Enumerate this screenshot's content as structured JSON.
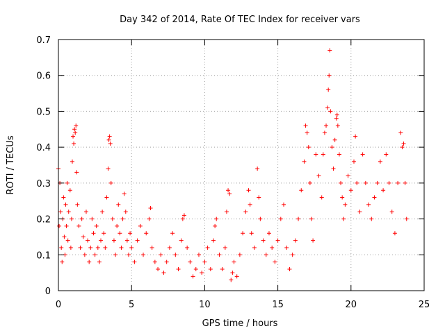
{
  "chart_data": {
    "type": "scatter",
    "title": "Day 342 of 2014, Rate Of TEC Index for receiver vars",
    "xlabel": "GPS time / hours",
    "ylabel": "ROTI / TECUs",
    "xlim": [
      0,
      25
    ],
    "ylim": [
      0,
      0.7
    ],
    "xticks": [
      0,
      5,
      10,
      15,
      20,
      25
    ],
    "xtick_labels": [
      "0",
      "5",
      "10",
      "15",
      "20",
      "25"
    ],
    "yticks": [
      0,
      0.1,
      0.2,
      0.3,
      0.4,
      0.5,
      0.6,
      0.7
    ],
    "ytick_labels": [
      "0",
      "0.1",
      "0.2",
      "0.3",
      "0.4",
      "0.5",
      "0.6",
      "0.7"
    ],
    "grid": true,
    "legend": "none",
    "marker": "+",
    "color": "#ff0000",
    "series": [
      {
        "name": "ROTI",
        "points": [
          [
            0.0,
            0.34
          ],
          [
            0.05,
            0.18
          ],
          [
            0.1,
            0.3
          ],
          [
            0.15,
            0.22
          ],
          [
            0.2,
            0.12
          ],
          [
            0.25,
            0.08
          ],
          [
            0.3,
            0.2
          ],
          [
            0.35,
            0.26
          ],
          [
            0.4,
            0.15
          ],
          [
            0.45,
            0.1
          ],
          [
            0.5,
            0.24
          ],
          [
            0.55,
            0.18
          ],
          [
            0.6,
            0.3
          ],
          [
            0.65,
            0.14
          ],
          [
            0.7,
            0.22
          ],
          [
            0.8,
            0.28
          ],
          [
            0.85,
            0.12
          ],
          [
            0.9,
            0.2
          ],
          [
            0.95,
            0.36
          ],
          [
            1.0,
            0.43
          ],
          [
            1.05,
            0.41
          ],
          [
            1.1,
            0.45
          ],
          [
            1.15,
            0.44
          ],
          [
            1.2,
            0.46
          ],
          [
            1.25,
            0.33
          ],
          [
            1.3,
            0.24
          ],
          [
            1.4,
            0.18
          ],
          [
            1.5,
            0.12
          ],
          [
            1.6,
            0.2
          ],
          [
            1.7,
            0.15
          ],
          [
            1.8,
            0.1
          ],
          [
            1.9,
            0.22
          ],
          [
            2.0,
            0.14
          ],
          [
            2.1,
            0.08
          ],
          [
            2.2,
            0.12
          ],
          [
            2.3,
            0.2
          ],
          [
            2.4,
            0.16
          ],
          [
            2.5,
            0.1
          ],
          [
            2.6,
            0.18
          ],
          [
            2.7,
            0.12
          ],
          [
            2.8,
            0.08
          ],
          [
            2.9,
            0.14
          ],
          [
            3.0,
            0.22
          ],
          [
            3.1,
            0.16
          ],
          [
            3.2,
            0.12
          ],
          [
            3.3,
            0.26
          ],
          [
            3.4,
            0.34
          ],
          [
            3.45,
            0.42
          ],
          [
            3.5,
            0.43
          ],
          [
            3.55,
            0.41
          ],
          [
            3.6,
            0.3
          ],
          [
            3.7,
            0.2
          ],
          [
            3.8,
            0.14
          ],
          [
            3.9,
            0.1
          ],
          [
            4.0,
            0.18
          ],
          [
            4.1,
            0.24
          ],
          [
            4.2,
            0.16
          ],
          [
            4.3,
            0.12
          ],
          [
            4.4,
            0.2
          ],
          [
            4.5,
            0.27
          ],
          [
            4.6,
            0.22
          ],
          [
            4.7,
            0.14
          ],
          [
            4.8,
            0.1
          ],
          [
            4.9,
            0.16
          ],
          [
            5.0,
            0.12
          ],
          [
            5.2,
            0.08
          ],
          [
            5.4,
            0.14
          ],
          [
            5.6,
            0.18
          ],
          [
            5.8,
            0.1
          ],
          [
            6.0,
            0.16
          ],
          [
            6.2,
            0.2
          ],
          [
            6.3,
            0.23
          ],
          [
            6.4,
            0.12
          ],
          [
            6.6,
            0.08
          ],
          [
            6.8,
            0.06
          ],
          [
            7.0,
            0.1
          ],
          [
            7.2,
            0.05
          ],
          [
            7.4,
            0.08
          ],
          [
            7.6,
            0.12
          ],
          [
            7.8,
            0.16
          ],
          [
            8.0,
            0.1
          ],
          [
            8.2,
            0.06
          ],
          [
            8.4,
            0.14
          ],
          [
            8.5,
            0.2
          ],
          [
            8.6,
            0.21
          ],
          [
            8.8,
            0.12
          ],
          [
            9.0,
            0.08
          ],
          [
            9.2,
            0.04
          ],
          [
            9.4,
            0.06
          ],
          [
            9.6,
            0.1
          ],
          [
            9.8,
            0.05
          ],
          [
            10.0,
            0.08
          ],
          [
            10.2,
            0.12
          ],
          [
            10.4,
            0.06
          ],
          [
            10.6,
            0.14
          ],
          [
            10.7,
            0.18
          ],
          [
            10.8,
            0.2
          ],
          [
            11.0,
            0.1
          ],
          [
            11.2,
            0.06
          ],
          [
            11.4,
            0.12
          ],
          [
            11.5,
            0.22
          ],
          [
            11.6,
            0.28
          ],
          [
            11.7,
            0.27
          ],
          [
            11.8,
            0.03
          ],
          [
            11.9,
            0.05
          ],
          [
            12.0,
            0.08
          ],
          [
            12.2,
            0.04
          ],
          [
            12.4,
            0.1
          ],
          [
            12.6,
            0.16
          ],
          [
            12.8,
            0.22
          ],
          [
            13.0,
            0.28
          ],
          [
            13.1,
            0.24
          ],
          [
            13.2,
            0.16
          ],
          [
            13.4,
            0.12
          ],
          [
            13.6,
            0.34
          ],
          [
            13.7,
            0.26
          ],
          [
            13.8,
            0.2
          ],
          [
            14.0,
            0.14
          ],
          [
            14.2,
            0.1
          ],
          [
            14.4,
            0.16
          ],
          [
            14.6,
            0.12
          ],
          [
            14.8,
            0.08
          ],
          [
            15.0,
            0.14
          ],
          [
            15.2,
            0.2
          ],
          [
            15.4,
            0.24
          ],
          [
            15.6,
            0.12
          ],
          [
            15.8,
            0.06
          ],
          [
            16.0,
            0.1
          ],
          [
            16.2,
            0.14
          ],
          [
            16.4,
            0.2
          ],
          [
            16.6,
            0.28
          ],
          [
            16.8,
            0.36
          ],
          [
            16.9,
            0.46
          ],
          [
            17.0,
            0.44
          ],
          [
            17.1,
            0.4
          ],
          [
            17.2,
            0.3
          ],
          [
            17.3,
            0.2
          ],
          [
            17.4,
            0.14
          ],
          [
            17.6,
            0.38
          ],
          [
            17.8,
            0.32
          ],
          [
            18.0,
            0.26
          ],
          [
            18.1,
            0.38
          ],
          [
            18.2,
            0.44
          ],
          [
            18.3,
            0.46
          ],
          [
            18.4,
            0.51
          ],
          [
            18.45,
            0.56
          ],
          [
            18.5,
            0.6
          ],
          [
            18.55,
            0.67
          ],
          [
            18.6,
            0.5
          ],
          [
            18.7,
            0.4
          ],
          [
            18.8,
            0.34
          ],
          [
            18.9,
            0.42
          ],
          [
            19.0,
            0.48
          ],
          [
            19.05,
            0.49
          ],
          [
            19.1,
            0.46
          ],
          [
            19.2,
            0.38
          ],
          [
            19.3,
            0.3
          ],
          [
            19.4,
            0.26
          ],
          [
            19.5,
            0.2
          ],
          [
            19.6,
            0.24
          ],
          [
            19.8,
            0.32
          ],
          [
            20.0,
            0.28
          ],
          [
            20.2,
            0.36
          ],
          [
            20.3,
            0.43
          ],
          [
            20.4,
            0.3
          ],
          [
            20.6,
            0.22
          ],
          [
            20.8,
            0.38
          ],
          [
            21.0,
            0.3
          ],
          [
            21.2,
            0.24
          ],
          [
            21.4,
            0.2
          ],
          [
            21.6,
            0.26
          ],
          [
            21.8,
            0.3
          ],
          [
            22.0,
            0.36
          ],
          [
            22.2,
            0.28
          ],
          [
            22.4,
            0.38
          ],
          [
            22.6,
            0.3
          ],
          [
            22.8,
            0.22
          ],
          [
            23.0,
            0.16
          ],
          [
            23.2,
            0.3
          ],
          [
            23.4,
            0.44
          ],
          [
            23.5,
            0.4
          ],
          [
            23.6,
            0.41
          ],
          [
            23.7,
            0.3
          ],
          [
            23.8,
            0.2
          ]
        ]
      }
    ]
  }
}
